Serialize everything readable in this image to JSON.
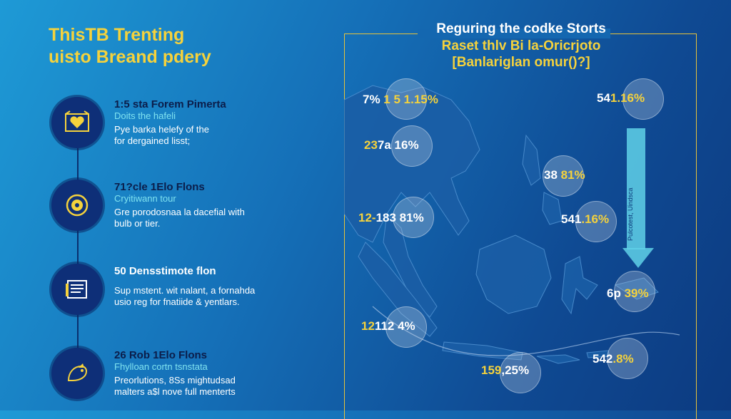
{
  "headline": {
    "line1": "ThisTB Trenting",
    "line2": "uisto Breand pdery"
  },
  "steps": [
    {
      "icon": "heart-icon",
      "title": "1:5 sta Forem Pimerta",
      "subtitle": "Doits the hafeli",
      "desc1": "Pye barka helefy of the",
      "desc2": "for dergained lisst;"
    },
    {
      "icon": "coin-icon",
      "title": "71?cle 1Elo Flons",
      "subtitle": "Cryitiwann tour",
      "desc1": "Gre porodosnaa la dacefial with",
      "desc2": "bulb or tier."
    },
    {
      "icon": "document-icon",
      "title": "50 Densstimote flon",
      "subtitle": "",
      "desc1": "Sup mstent. wit nalant, a fornahda",
      "desc2": "usio reg for fnatiide & yentlars."
    },
    {
      "icon": "bird-icon",
      "title": "26 Rob 1Elo Flons",
      "subtitle": "Fhylloan cortn tsnstata",
      "desc1": "Preorlutions, 8Ss mightudsad",
      "desc2": "malters a$l nove full menterts"
    }
  ],
  "map": {
    "title1": "Reguring the codke Storts",
    "title2": "Raset thlv Bi la-Oricrjoto",
    "title3": "[Banlariglan omur()?]",
    "arrow_text": "Pulcotest, Uindsca"
  },
  "bubbles": [
    {
      "id": "b1",
      "a": "7% ",
      "b": "1 5 1.15%"
    },
    {
      "id": "b2",
      "a": "23",
      "b": "7a 16%"
    },
    {
      "id": "b3",
      "a": "12-",
      "b": "183 81%"
    },
    {
      "id": "b4",
      "a": "12",
      "b": "112 4%"
    },
    {
      "id": "b5",
      "a": "54",
      "b": "1.16%"
    },
    {
      "id": "b6",
      "a": "38 ",
      "b": "81%"
    },
    {
      "id": "b7",
      "a": "541",
      "b": ".16%"
    },
    {
      "id": "b8",
      "a": "6p ",
      "b": "39%"
    },
    {
      "id": "b9",
      "a": "159",
      "b": ",25%"
    },
    {
      "id": "b10",
      "a": "542",
      "b": ".8%"
    }
  ]
}
